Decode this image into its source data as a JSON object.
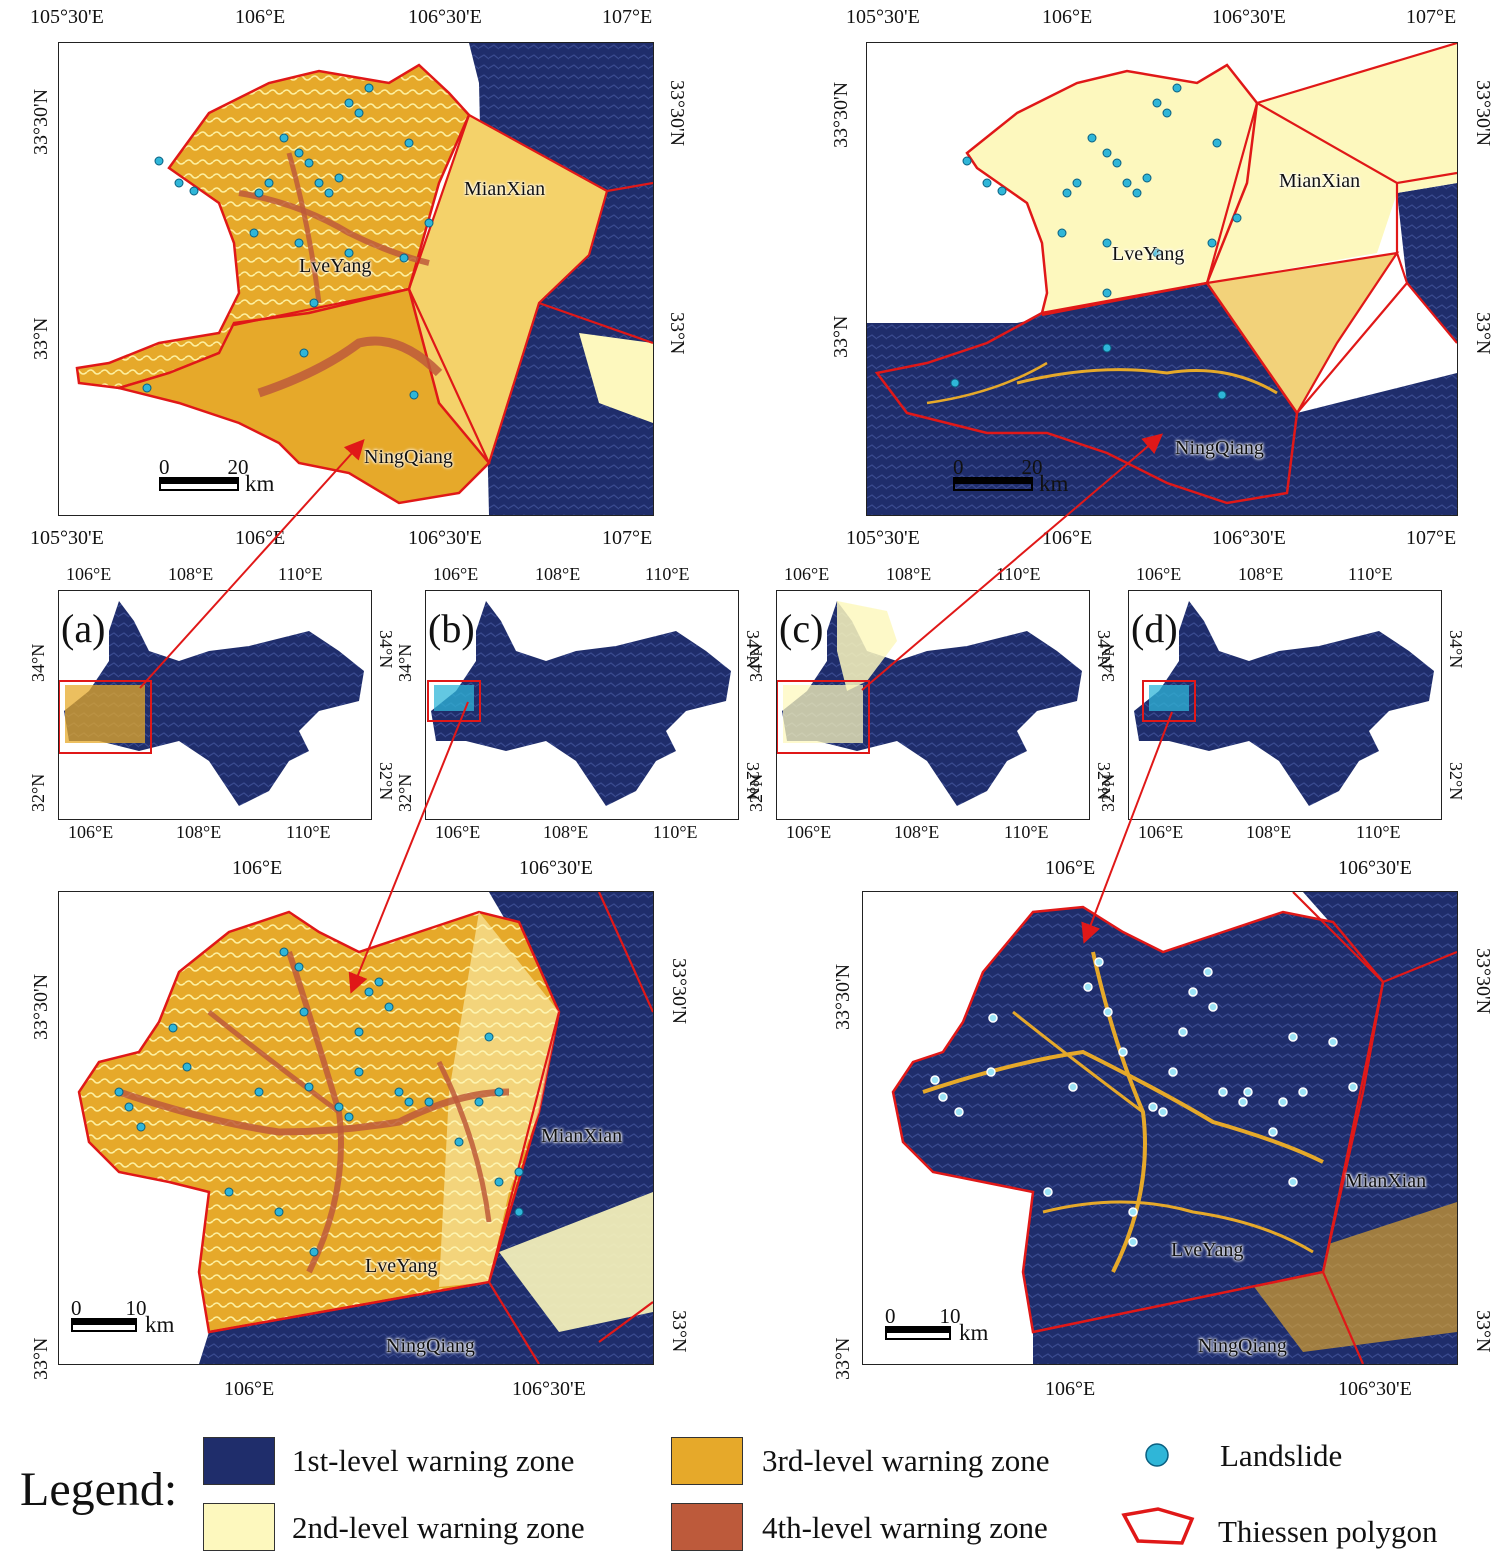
{
  "colors": {
    "level1": "#1f2d6b",
    "level2": "#fdf8be",
    "level3": "#e6a92a",
    "level4": "#bd5a3b",
    "landslide": "#2fb6d8",
    "thiessen": "#e01818",
    "arrow": "#e01818"
  },
  "panels": {
    "top_left": {
      "top_ticks": [
        "105°30'E",
        "106°E",
        "106°30'E",
        "107°E"
      ],
      "bottom_ticks": [
        "105°30'E",
        "106°E",
        "106°30'E",
        "107°E"
      ],
      "left_ticks": [
        "33°30'N",
        "33°N"
      ],
      "right_ticks": [
        "33°30'N",
        "33°N"
      ],
      "labels": {
        "mianxian": "MianXian",
        "lveyang": "LveYang",
        "ningqiang": "NingQiang"
      },
      "scale": {
        "from": "0",
        "to": "20",
        "unit": "km"
      }
    },
    "top_right": {
      "top_ticks": [
        "105°30'E",
        "106°E",
        "106°30'E",
        "107°E"
      ],
      "bottom_ticks": [
        "105°30'E",
        "106°E",
        "106°30'E",
        "107°E"
      ],
      "left_ticks": [
        "33°30'N",
        "33°N"
      ],
      "right_ticks": [
        "33°30'N",
        "33°N"
      ],
      "labels": {
        "mianxian": "MianXian",
        "lveyang": "LveYang",
        "ningqiang": "NingQiang"
      },
      "scale": {
        "from": "0",
        "to": "20",
        "unit": "km"
      }
    },
    "overviews": [
      {
        "letter": "(a)",
        "top_ticks": [
          "106°E",
          "108°E",
          "110°E"
        ],
        "bottom_ticks": [
          "106°E",
          "108°E",
          "110°E"
        ],
        "left_ticks": [
          "34°N",
          "32°N"
        ],
        "right_ticks": [
          "34°N",
          "32°N"
        ]
      },
      {
        "letter": "(b)",
        "top_ticks": [
          "106°E",
          "108°E",
          "110°E"
        ],
        "bottom_ticks": [
          "106°E",
          "108°E",
          "110°E"
        ],
        "left_ticks": [
          "34°N",
          "32°N"
        ],
        "right_ticks": [
          "34°N",
          "32°N"
        ]
      },
      {
        "letter": "(c)",
        "top_ticks": [
          "106°E",
          "108°E",
          "110°E"
        ],
        "bottom_ticks": [
          "106°E",
          "108°E",
          "110°E"
        ],
        "left_ticks": [
          "34°N",
          "32°N"
        ],
        "right_ticks": [
          "34°N",
          "32°N"
        ]
      },
      {
        "letter": "(d)",
        "top_ticks": [
          "106°E",
          "108°E",
          "110°E"
        ],
        "bottom_ticks": [
          "106°E",
          "108°E",
          "110°E"
        ],
        "left_ticks": [
          "34°N",
          "32°N"
        ],
        "right_ticks": [
          "34°N",
          "32°N"
        ]
      }
    ],
    "bottom_left": {
      "top_ticks": [
        "106°E",
        "106°30'E"
      ],
      "bottom_ticks": [
        "106°E",
        "106°30'E"
      ],
      "left_ticks": [
        "33°30'N",
        "33°N"
      ],
      "right_ticks": [
        "33°30'N",
        "33°N"
      ],
      "labels": {
        "mianxian": "MianXian",
        "lveyang": "LveYang",
        "ningqiang": "NingQiang"
      },
      "scale": {
        "from": "0",
        "to": "10",
        "unit": "km"
      }
    },
    "bottom_right": {
      "top_ticks": [
        "106°E",
        "106°30'E"
      ],
      "bottom_ticks": [
        "106°E",
        "106°30'E"
      ],
      "left_ticks": [
        "33°30'N",
        "33°N"
      ],
      "right_ticks": [
        "33°30'N",
        "33°N"
      ],
      "labels": {
        "mianxian": "MianXian",
        "lveyang": "LveYang",
        "ningqiang": "NingQiang"
      },
      "scale": {
        "from": "0",
        "to": "10",
        "unit": "km"
      }
    }
  },
  "legend": {
    "title": "Legend:",
    "items": [
      {
        "label": "1st-level warning zone",
        "swatch": "level1"
      },
      {
        "label": "2nd-level warning zone",
        "swatch": "level2"
      },
      {
        "label": "3rd-level warning zone",
        "swatch": "level3"
      },
      {
        "label": "4th-level warning zone",
        "swatch": "level4"
      },
      {
        "label": "Landslide",
        "swatch": "landslide"
      },
      {
        "label": "Thiessen polygon",
        "swatch": "thiessen"
      }
    ]
  }
}
